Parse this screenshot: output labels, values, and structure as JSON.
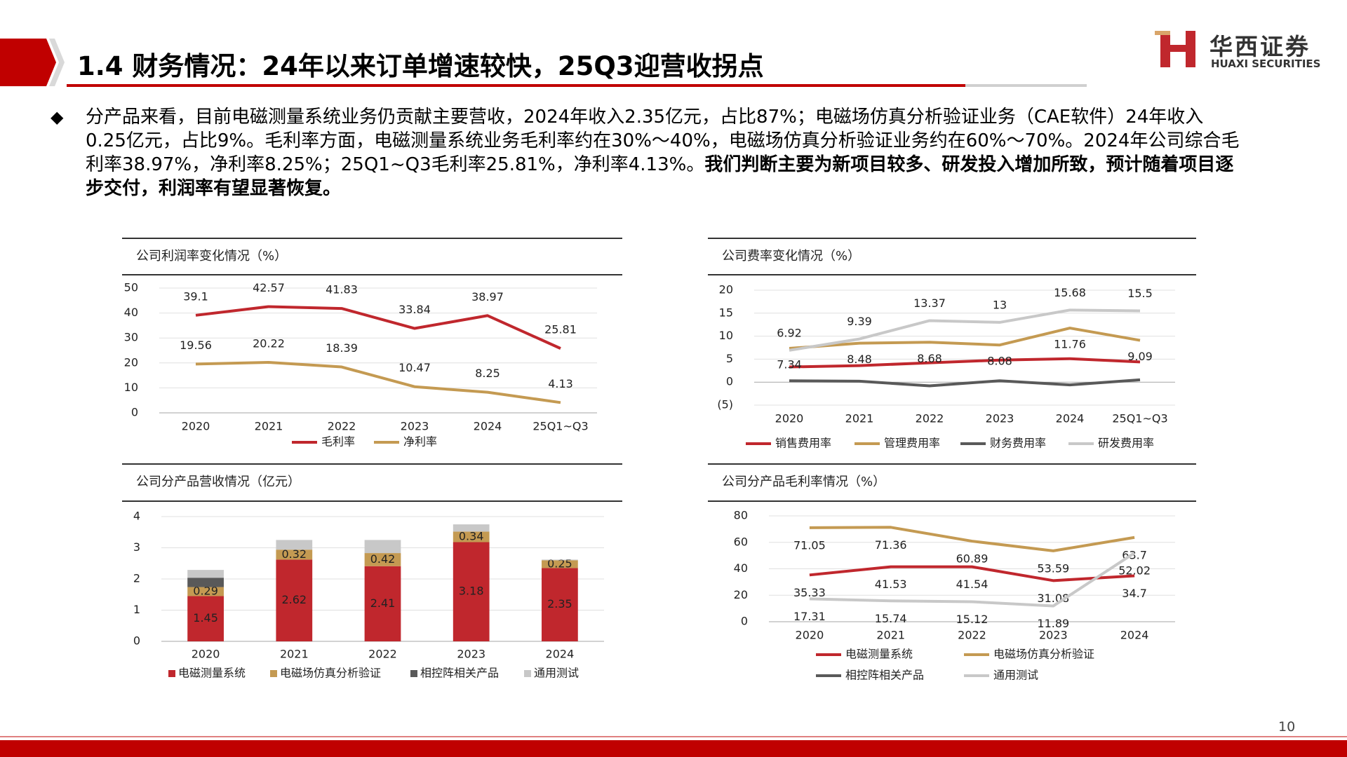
{
  "header": {
    "title": "1.4 财务情况：24年以来订单增速较快，25Q3迎营收拐点"
  },
  "logo": {
    "name": "华西证券",
    "name_en": "HUAXI SECURITIES"
  },
  "bullet": {
    "text": "分产品来看，目前电磁测量系统业务仍贡献主要营收，2024年收入2.35亿元，占比87%；电磁场仿真分析验证业务（CAE软件）24年收入0.25亿元，占比9%。毛利率方面，电磁测量系统业务毛利率约在30%～40%，电磁场仿真分析验证业务约在60%～70%。2024年公司综合毛利率38.97%，净利率8.25%；25Q1~Q3毛利率25.81%，净利率4.13%。",
    "emphasis": "我们判断主要为新项目较多、研发投入增加所致，预计随着项目逐步交付，利润率有望显著恢复。"
  },
  "page_number": "10",
  "chart_data": [
    {
      "type": "line",
      "title": "公司利润率变化情况（%）",
      "categories": [
        "2020",
        "2021",
        "2022",
        "2023",
        "2024",
        "25Q1~Q3"
      ],
      "series": [
        {
          "name": "毛利率",
          "color": "#c0272d",
          "labels": true,
          "values": [
            39.1,
            42.57,
            41.83,
            33.84,
            38.97,
            25.81
          ]
        },
        {
          "name": "净利率",
          "color": "#c49a52",
          "labels": true,
          "values": [
            19.56,
            20.22,
            18.39,
            10.47,
            8.25,
            4.13
          ]
        }
      ],
      "ylim": [
        0,
        50
      ],
      "yticks": [
        0,
        10,
        20,
        30,
        40,
        50
      ],
      "grid": true
    },
    {
      "type": "line",
      "title": "公司费率变化情况（%）",
      "categories": [
        "2020",
        "2021",
        "2022",
        "2023",
        "2024",
        "25Q1~Q3"
      ],
      "series": [
        {
          "name": "销售费用率",
          "color": "#c0272d",
          "labels": false,
          "values": [
            3.3,
            3.6,
            4.2,
            4.8,
            5.1,
            4.4
          ]
        },
        {
          "name": "管理费用率",
          "color": "#c49a52",
          "labels": true,
          "values": [
            7.34,
            8.48,
            8.68,
            8.08,
            11.76,
            9.09
          ]
        },
        {
          "name": "财务费用率",
          "color": "#595959",
          "labels": false,
          "values": [
            0.3,
            0.2,
            -0.8,
            0.3,
            -0.6,
            0.5
          ]
        },
        {
          "name": "研发费用率",
          "color": "#c8c8c8",
          "labels": true,
          "values": [
            6.92,
            9.39,
            13.37,
            13,
            15.68,
            15.5
          ]
        }
      ],
      "ylim": [
        -5,
        20
      ],
      "yticks": [
        {
          "value": -5,
          "label": "(5)"
        },
        0,
        5,
        10,
        15,
        20
      ],
      "grid": true
    },
    {
      "type": "bar",
      "stacked": true,
      "title": "公司分产品营收情况（亿元）",
      "categories": [
        "2020",
        "2021",
        "2022",
        "2023",
        "2024"
      ],
      "series": [
        {
          "name": "电磁测量系统",
          "color": "#c0272d",
          "labels": true,
          "values": [
            1.45,
            2.62,
            2.41,
            3.18,
            2.35
          ]
        },
        {
          "name": "电磁场仿真分析验证",
          "color": "#c49a52",
          "labels": true,
          "values": [
            0.29,
            0.32,
            0.42,
            0.34,
            0.25
          ]
        },
        {
          "name": "相控阵相关产品",
          "color": "#595959",
          "labels": false,
          "values": [
            0.3,
            0,
            0,
            0,
            0
          ]
        },
        {
          "name": "通用测试",
          "color": "#c8c8c8",
          "labels": false,
          "values": [
            0.25,
            0.31,
            0.42,
            0.23,
            0.02
          ]
        }
      ],
      "ylim": [
        0,
        4
      ],
      "yticks": [
        0,
        1,
        2,
        3,
        4
      ],
      "grid": true
    },
    {
      "type": "line",
      "title": "公司分产品毛利率情况（%）",
      "categories": [
        "2020",
        "2021",
        "2022",
        "2023",
        "2024"
      ],
      "series": [
        {
          "name": "电磁测量系统",
          "color": "#c0272d",
          "labels": true,
          "values": [
            35.33,
            41.53,
            41.54,
            31.08,
            34.7
          ]
        },
        {
          "name": "电磁场仿真分析验证",
          "color": "#c49a52",
          "labels": true,
          "values": [
            71.05,
            71.36,
            60.89,
            53.59,
            63.7
          ]
        },
        {
          "name": "相控阵相关产品",
          "color": "#595959",
          "labels": false,
          "values": [
            null,
            null,
            null,
            null,
            null
          ]
        },
        {
          "name": "通用测试",
          "color": "#c8c8c8",
          "labels": true,
          "values": [
            17.31,
            15.74,
            15.12,
            11.89,
            52.02
          ]
        }
      ],
      "ylim": [
        0,
        80
      ],
      "yticks": [
        0,
        20,
        40,
        60,
        80
      ],
      "grid": true
    }
  ]
}
